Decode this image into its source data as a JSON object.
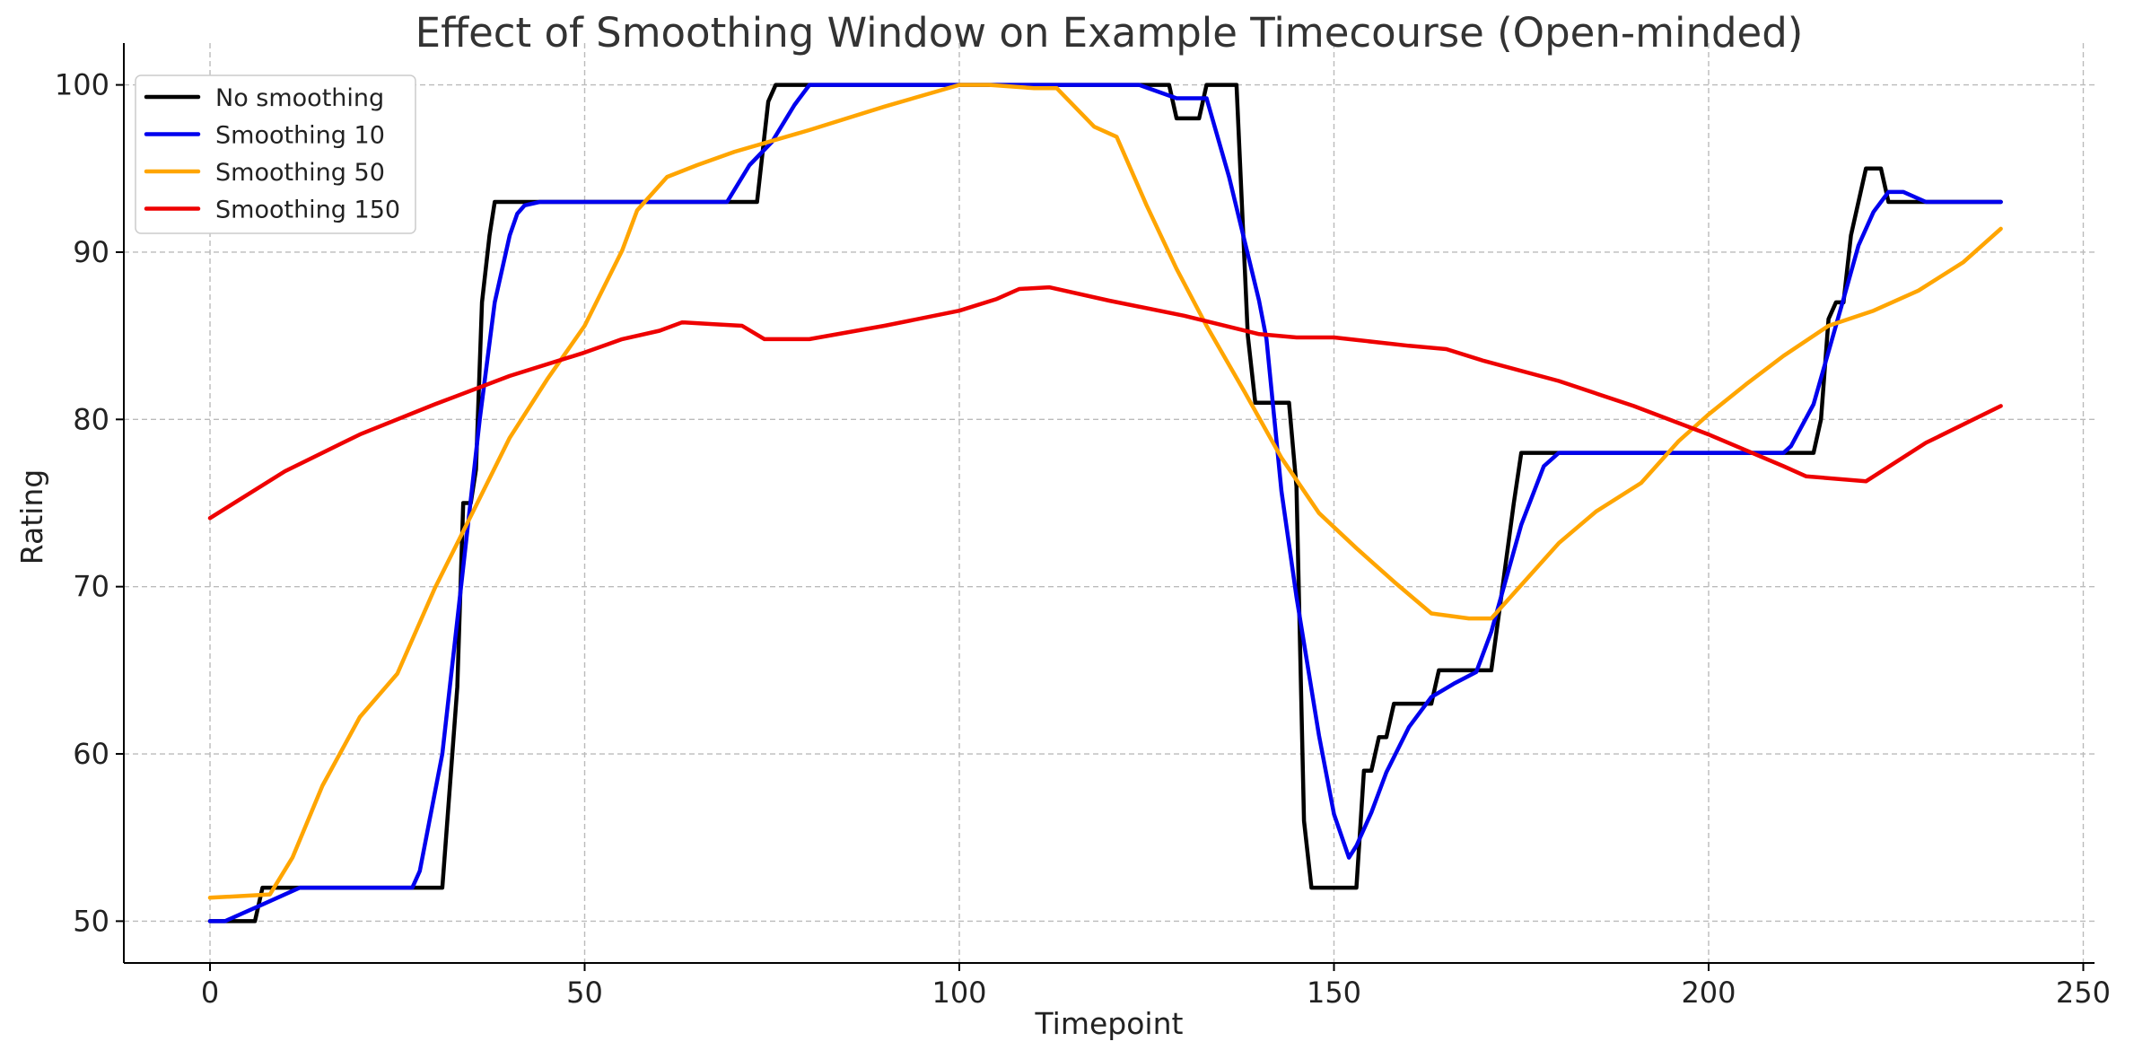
{
  "chart_data": {
    "type": "line",
    "title": "Effect of Smoothing Window on Example Timecourse (Open-minded)",
    "xlabel": "Timepoint",
    "ylabel": "Rating",
    "xlim": [
      -11.5,
      251.5
    ],
    "ylim": [
      47.5,
      102.5
    ],
    "xticks": [
      0,
      50,
      100,
      150,
      200,
      250
    ],
    "yticks": [
      50,
      60,
      70,
      80,
      90,
      100
    ],
    "grid": true,
    "legend_position": "top-left",
    "series": [
      {
        "name": "No smoothing",
        "color": "#000000",
        "points": [
          [
            0,
            50
          ],
          [
            6,
            50
          ],
          [
            7,
            52
          ],
          [
            31,
            52
          ],
          [
            33,
            64
          ],
          [
            33.8,
            75
          ],
          [
            34.8,
            75
          ],
          [
            35.5,
            77
          ],
          [
            36.3,
            87
          ],
          [
            37.3,
            91
          ],
          [
            38,
            93
          ],
          [
            73,
            93
          ],
          [
            74.5,
            99
          ],
          [
            75.5,
            100
          ],
          [
            128,
            100
          ],
          [
            129,
            98
          ],
          [
            132,
            98
          ],
          [
            133,
            100
          ],
          [
            137,
            100
          ],
          [
            138.5,
            85
          ],
          [
            139.5,
            81
          ],
          [
            144,
            81
          ],
          [
            145,
            76
          ],
          [
            146,
            56
          ],
          [
            147,
            52
          ],
          [
            153,
            52
          ],
          [
            154,
            59
          ],
          [
            155,
            59
          ],
          [
            156,
            61
          ],
          [
            157,
            61
          ],
          [
            158,
            63
          ],
          [
            163,
            63
          ],
          [
            164,
            65
          ],
          [
            171,
            65
          ],
          [
            172.5,
            70
          ],
          [
            174,
            75
          ],
          [
            175,
            78
          ],
          [
            210,
            78
          ],
          [
            214,
            78
          ],
          [
            215,
            80
          ],
          [
            216,
            86
          ],
          [
            217,
            87
          ],
          [
            218,
            87
          ],
          [
            219,
            91
          ],
          [
            221,
            95
          ],
          [
            223,
            95
          ],
          [
            224,
            93
          ],
          [
            239,
            93
          ]
        ]
      },
      {
        "name": "Smoothing 10",
        "color": "#0000ee",
        "points": [
          [
            0,
            50
          ],
          [
            2,
            50
          ],
          [
            7,
            51
          ],
          [
            12,
            52
          ],
          [
            27,
            52
          ],
          [
            28,
            53
          ],
          [
            31,
            60
          ],
          [
            33,
            68
          ],
          [
            36,
            80
          ],
          [
            38,
            87
          ],
          [
            40,
            91
          ],
          [
            41,
            92.3
          ],
          [
            42,
            92.8
          ],
          [
            44,
            93
          ],
          [
            69,
            93
          ],
          [
            72,
            95.2
          ],
          [
            75,
            96.6
          ],
          [
            78,
            98.8
          ],
          [
            80,
            100
          ],
          [
            124,
            100
          ],
          [
            129,
            99.2
          ],
          [
            133,
            99.2
          ],
          [
            136,
            94.5
          ],
          [
            140,
            87.1
          ],
          [
            141,
            84.8
          ],
          [
            143,
            75.7
          ],
          [
            145,
            69.4
          ],
          [
            148,
            61.1
          ],
          [
            150,
            56.4
          ],
          [
            152,
            53.8
          ],
          [
            153,
            54.5
          ],
          [
            155,
            56.5
          ],
          [
            157,
            58.9
          ],
          [
            160,
            61.6
          ],
          [
            163,
            63.4
          ],
          [
            166,
            64.2
          ],
          [
            169,
            64.9
          ],
          [
            171,
            67.3
          ],
          [
            175,
            73.7
          ],
          [
            178,
            77.2
          ],
          [
            180,
            78
          ],
          [
            210,
            78
          ],
          [
            211,
            78.4
          ],
          [
            214,
            80.9
          ],
          [
            218,
            87.2
          ],
          [
            220,
            90.4
          ],
          [
            222,
            92.4
          ],
          [
            224,
            93.6
          ],
          [
            226,
            93.6
          ],
          [
            229,
            93
          ],
          [
            239,
            93
          ]
        ]
      },
      {
        "name": "Smoothing 50",
        "color": "#ffa500",
        "points": [
          [
            0,
            51.4
          ],
          [
            8,
            51.6
          ],
          [
            11,
            53.8
          ],
          [
            15,
            58.1
          ],
          [
            20,
            62.2
          ],
          [
            25,
            64.8
          ],
          [
            30,
            69.9
          ],
          [
            35,
            74.4
          ],
          [
            40,
            78.9
          ],
          [
            45,
            82.4
          ],
          [
            50,
            85.6
          ],
          [
            55,
            90.1
          ],
          [
            57,
            92.5
          ],
          [
            61,
            94.5
          ],
          [
            65,
            95.2
          ],
          [
            70,
            96
          ],
          [
            80,
            97.3
          ],
          [
            90,
            98.7
          ],
          [
            100,
            100
          ],
          [
            104,
            100
          ],
          [
            110,
            99.8
          ],
          [
            113,
            99.8
          ],
          [
            118,
            97.5
          ],
          [
            121,
            96.9
          ],
          [
            125,
            92.8
          ],
          [
            129,
            89
          ],
          [
            133,
            85.6
          ],
          [
            138,
            81.7
          ],
          [
            143,
            77.7
          ],
          [
            148,
            74.4
          ],
          [
            153,
            72.3
          ],
          [
            158,
            70.3
          ],
          [
            163,
            68.4
          ],
          [
            168,
            68.1
          ],
          [
            171,
            68.1
          ],
          [
            176,
            70.6
          ],
          [
            180,
            72.6
          ],
          [
            185,
            74.5
          ],
          [
            191,
            76.2
          ],
          [
            196,
            78.7
          ],
          [
            200,
            80.3
          ],
          [
            205,
            82.1
          ],
          [
            210,
            83.8
          ],
          [
            216,
            85.6
          ],
          [
            222,
            86.5
          ],
          [
            228,
            87.7
          ],
          [
            234,
            89.4
          ],
          [
            239,
            91.4
          ]
        ]
      },
      {
        "name": "Smoothing 150",
        "color": "#ee0000",
        "points": [
          [
            0,
            74.1
          ],
          [
            10,
            76.9
          ],
          [
            20,
            79.1
          ],
          [
            30,
            80.9
          ],
          [
            40,
            82.6
          ],
          [
            50,
            84
          ],
          [
            55,
            84.8
          ],
          [
            60,
            85.3
          ],
          [
            63,
            85.8
          ],
          [
            67,
            85.7
          ],
          [
            71,
            85.6
          ],
          [
            74,
            84.8
          ],
          [
            80,
            84.8
          ],
          [
            90,
            85.6
          ],
          [
            100,
            86.5
          ],
          [
            105,
            87.2
          ],
          [
            108,
            87.8
          ],
          [
            112,
            87.9
          ],
          [
            120,
            87.1
          ],
          [
            130,
            86.2
          ],
          [
            140,
            85.1
          ],
          [
            145,
            84.9
          ],
          [
            150,
            84.9
          ],
          [
            160,
            84.4
          ],
          [
            165,
            84.2
          ],
          [
            170,
            83.5
          ],
          [
            180,
            82.3
          ],
          [
            190,
            80.8
          ],
          [
            200,
            79.1
          ],
          [
            210,
            77.2
          ],
          [
            213,
            76.6
          ],
          [
            221,
            76.3
          ],
          [
            229,
            78.6
          ],
          [
            239,
            80.8
          ]
        ]
      }
    ]
  }
}
